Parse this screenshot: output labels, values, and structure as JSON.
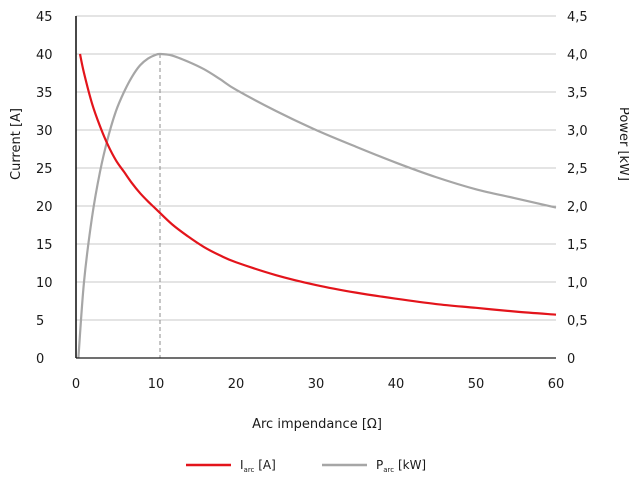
{
  "chart_data": {
    "type": "line",
    "title": "",
    "xlabel": "Arc impendance [Ω]",
    "ylabel_left": "Current [A]",
    "ylabel_right": "Power [kW]",
    "xlim": [
      0,
      60
    ],
    "ylim_left": [
      0,
      45
    ],
    "ylim_right": [
      0,
      4.5
    ],
    "x_ticks": [
      "0",
      "10",
      "20",
      "30",
      "40",
      "50",
      "60"
    ],
    "y_ticks_left": [
      "0",
      "5",
      "10",
      "15",
      "20",
      "25",
      "30",
      "35",
      "40",
      "45"
    ],
    "y_ticks_right": [
      "0",
      "0,5",
      "1,0",
      "1,5",
      "2,0",
      "2,5",
      "3,0",
      "3,5",
      "4,0",
      "4,5"
    ],
    "grid": "horizontal",
    "legend_position": "bottom-center",
    "reference_line": {
      "x": 10.5,
      "style": "dashed"
    },
    "series": [
      {
        "name": "I",
        "subscript": "arc",
        "unit": " [A]",
        "axis": "left",
        "color": "#e3141b",
        "x": [
          0.5,
          1,
          2,
          3,
          4,
          5,
          6,
          7,
          8,
          9,
          10,
          12,
          14,
          16,
          18,
          20,
          25,
          30,
          35,
          40,
          45,
          50,
          55,
          60
        ],
        "values": [
          40,
          37.5,
          33.5,
          30.5,
          28,
          26,
          24.5,
          23,
          21.7,
          20.6,
          19.6,
          17.6,
          16,
          14.6,
          13.5,
          12.6,
          10.9,
          9.6,
          8.6,
          7.8,
          7.1,
          6.6,
          6.1,
          5.7
        ]
      },
      {
        "name": "P",
        "subscript": "arc",
        "unit": " [kW]",
        "axis": "right",
        "color": "#a6a6a6",
        "x": [
          0.3,
          1,
          2,
          3,
          4,
          5,
          6,
          7,
          8,
          9,
          10,
          10.5,
          12,
          14,
          16,
          18,
          20,
          25,
          30,
          35,
          40,
          45,
          50,
          55,
          60
        ],
        "values": [
          0,
          1.0,
          1.85,
          2.45,
          2.9,
          3.25,
          3.5,
          3.7,
          3.85,
          3.94,
          3.99,
          4.0,
          3.98,
          3.9,
          3.8,
          3.67,
          3.53,
          3.25,
          3.0,
          2.78,
          2.57,
          2.38,
          2.22,
          2.1,
          1.98
        ]
      }
    ]
  }
}
